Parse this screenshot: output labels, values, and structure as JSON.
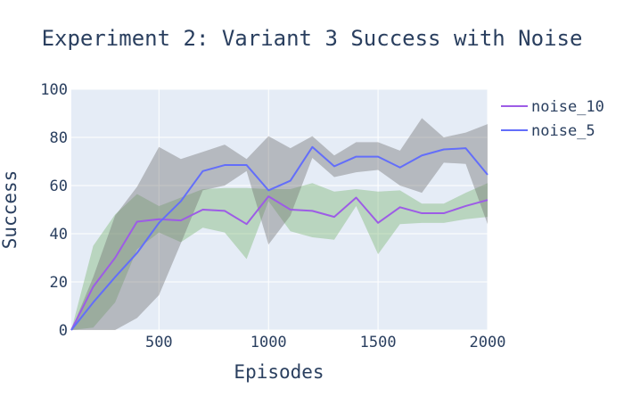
{
  "chart_data": {
    "type": "line",
    "title": "Experiment 2: Variant 3 Success with Noise",
    "xlabel": "Episodes",
    "ylabel": "Success",
    "xlim": [
      100,
      2000
    ],
    "ylim": [
      0,
      100
    ],
    "xticks": [
      500,
      1000,
      1500,
      2000
    ],
    "yticks": [
      0,
      20,
      40,
      60,
      80,
      100
    ],
    "grid": true,
    "legend_position": "top-right outside",
    "background_color": "#e5ecf6",
    "x": [
      100,
      200,
      300,
      400,
      500,
      600,
      700,
      800,
      900,
      1000,
      1100,
      1200,
      1300,
      1400,
      1500,
      1600,
      1700,
      1800,
      1900,
      2000
    ],
    "series": [
      {
        "name": "noise_10",
        "color": "#9d5ce6",
        "band_color": "rgba(120,180,110,0.40)",
        "values": [
          0,
          18,
          30,
          45,
          46,
          45.5,
          50,
          49.5,
          44,
          55.5,
          50,
          49.5,
          47,
          55,
          44.5,
          51,
          48.5,
          48.5,
          51.5,
          54
        ],
        "upper": [
          0,
          35,
          48,
          56.5,
          51.5,
          55,
          58.5,
          59,
          59,
          58.5,
          58.5,
          61,
          57.5,
          58.5,
          57.5,
          58,
          52.5,
          52.5,
          57,
          61
        ],
        "lower": [
          0,
          1,
          11.5,
          33.5,
          40.5,
          36.5,
          42.5,
          40.5,
          29.5,
          53.5,
          41,
          38.5,
          37.5,
          51.5,
          31.5,
          44,
          44.5,
          44.5,
          46,
          47
        ]
      },
      {
        "name": "noise_5",
        "color": "#636efa",
        "band_color": "rgba(110,110,110,0.40)",
        "values": [
          0,
          11.5,
          22,
          32,
          44.5,
          53.5,
          66,
          68.5,
          68.5,
          58,
          62,
          76,
          68,
          72,
          72,
          67.5,
          72.5,
          75,
          75.5,
          64.5
        ],
        "upper": [
          0,
          22,
          47.5,
          59.5,
          76,
          71,
          74,
          77,
          71,
          80.5,
          75.5,
          80.5,
          72.5,
          78,
          78,
          74.5,
          88,
          80,
          82,
          85.5
        ],
        "lower": [
          0,
          0,
          0,
          5,
          14.5,
          36,
          58,
          60,
          66,
          35.5,
          47.5,
          71.5,
          63.5,
          65.5,
          66.5,
          60,
          57,
          69.5,
          69,
          44
        ]
      }
    ]
  }
}
